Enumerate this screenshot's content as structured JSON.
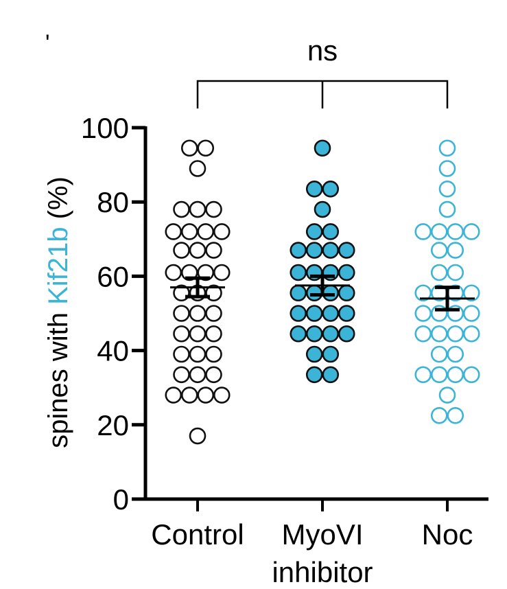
{
  "chart_data": {
    "type": "scatter",
    "subtype": "dot-plot-with-mean-sem",
    "title": "",
    "corner_mark": "'",
    "ylabel": {
      "prefix": "spines with ",
      "highlight": "Kif21b",
      "suffix": " (%)",
      "highlight_color": "#3bb4d8"
    },
    "ylim": [
      0,
      100
    ],
    "yticks": [
      0,
      20,
      40,
      60,
      80,
      100
    ],
    "categories": [
      {
        "label_lines": [
          "Control"
        ],
        "style": "open",
        "color": "#111111",
        "fill": "#ffffff",
        "mean": 57.0,
        "sem": 2.5,
        "points": [
          {
            "y": 94.5,
            "n": 2
          },
          {
            "y": 89,
            "n": 1
          },
          {
            "y": 78,
            "n": 3
          },
          {
            "y": 72,
            "n": 4
          },
          {
            "y": 67,
            "n": 3
          },
          {
            "y": 61,
            "n": 4
          },
          {
            "y": 55.5,
            "n": 3
          },
          {
            "y": 50,
            "n": 3
          },
          {
            "y": 44.5,
            "n": 3
          },
          {
            "y": 39,
            "n": 3
          },
          {
            "y": 33.5,
            "n": 3
          },
          {
            "y": 28,
            "n": 4
          },
          {
            "y": 17,
            "n": 1
          }
        ]
      },
      {
        "label_lines": [
          "MyoVI",
          "inhibitor"
        ],
        "style": "filled",
        "color": "#111111",
        "fill": "#3bb4d8",
        "mean": 57.5,
        "sem": 2.5,
        "points": [
          {
            "y": 94.5,
            "n": 1
          },
          {
            "y": 83.5,
            "n": 2
          },
          {
            "y": 78,
            "n": 1
          },
          {
            "y": 72,
            "n": 2
          },
          {
            "y": 67,
            "n": 4
          },
          {
            "y": 61,
            "n": 4
          },
          {
            "y": 55.5,
            "n": 4
          },
          {
            "y": 50,
            "n": 4
          },
          {
            "y": 44.5,
            "n": 4
          },
          {
            "y": 39,
            "n": 2
          },
          {
            "y": 33.5,
            "n": 2
          }
        ]
      },
      {
        "label_lines": [
          "Noc"
        ],
        "style": "open",
        "color": "#3bb4d8",
        "fill": "#ffffff",
        "mean": 54.0,
        "sem": 3.0,
        "points": [
          {
            "y": 94.5,
            "n": 1
          },
          {
            "y": 89,
            "n": 1
          },
          {
            "y": 83.5,
            "n": 1
          },
          {
            "y": 78,
            "n": 1
          },
          {
            "y": 72,
            "n": 4
          },
          {
            "y": 67,
            "n": 2
          },
          {
            "y": 61,
            "n": 2
          },
          {
            "y": 55.5,
            "n": 4
          },
          {
            "y": 50,
            "n": 4
          },
          {
            "y": 44.5,
            "n": 4
          },
          {
            "y": 39,
            "n": 2
          },
          {
            "y": 33.5,
            "n": 4
          },
          {
            "y": 28,
            "n": 1
          },
          {
            "y": 22.5,
            "n": 2
          }
        ]
      }
    ],
    "significance": {
      "label": "ns",
      "spans": [
        "Control",
        "MyoVI inhibitor",
        "Noc"
      ]
    }
  }
}
